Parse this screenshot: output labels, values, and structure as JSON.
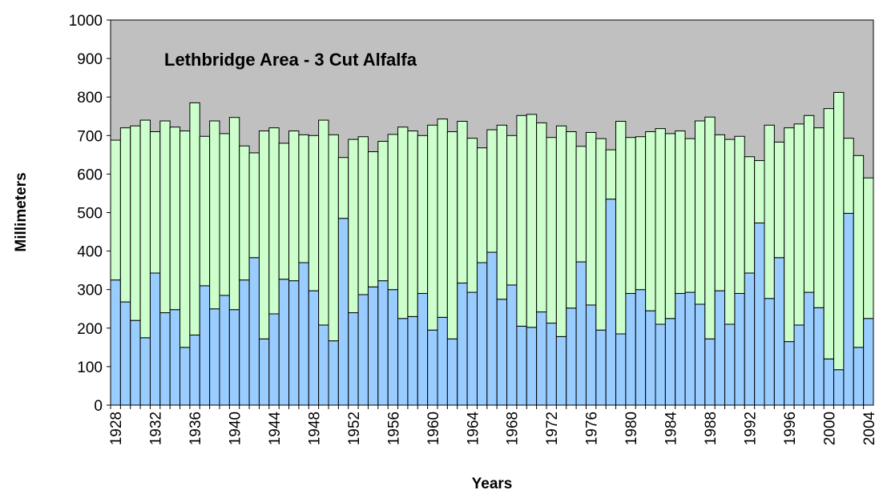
{
  "chart_data": {
    "type": "stacked-bar",
    "title": "Lethbridge Area - 3 Cut Alfalfa",
    "x_label": "Years",
    "y_label": "Millimeters",
    "categories": [
      "1928",
      null,
      null,
      null,
      "1932",
      null,
      null,
      null,
      "1936",
      null,
      null,
      null,
      "1940",
      null,
      null,
      null,
      "1944",
      null,
      null,
      null,
      "1948",
      null,
      null,
      null,
      "1952",
      null,
      null,
      null,
      "1956",
      null,
      null,
      null,
      "1960",
      null,
      null,
      null,
      "1964",
      null,
      null,
      null,
      "1968",
      null,
      null,
      null,
      "1972",
      null,
      null,
      null,
      "1976",
      null,
      null,
      null,
      "1980",
      null,
      null,
      null,
      "1984",
      null,
      null,
      null,
      "1988",
      null,
      null,
      null,
      "1992",
      null,
      null,
      null,
      "1996",
      null,
      null,
      null,
      "2000",
      null,
      null,
      null,
      "2004"
    ],
    "series": [
      {
        "color": "#99ccff",
        "values": [
          325,
          268,
          220,
          175,
          343,
          240,
          248,
          150,
          182,
          310,
          250,
          285,
          248,
          325,
          383,
          172,
          237,
          327,
          323,
          370,
          297,
          208,
          167,
          485,
          240,
          287,
          307,
          323,
          300,
          225,
          230,
          290,
          195,
          228,
          172,
          317,
          293,
          370,
          397,
          275,
          312,
          205,
          202,
          242,
          213,
          178,
          252,
          372,
          260,
          195,
          535,
          185,
          290,
          300,
          245,
          210,
          225,
          290,
          293,
          262,
          172,
          297,
          210,
          290,
          343,
          473,
          277,
          383,
          165,
          208,
          293,
          253,
          120,
          92,
          498,
          150,
          225
        ]
      },
      {
        "color": "#ccffcc",
        "values": [
          363,
          452,
          505,
          565,
          367,
          498,
          474,
          562,
          603,
          388,
          488,
          420,
          499,
          348,
          272,
          540,
          483,
          353,
          389,
          332,
          403,
          532,
          535,
          158,
          450,
          410,
          351,
          362,
          403,
          497,
          482,
          410,
          532,
          515,
          538,
          420,
          400,
          298,
          318,
          452,
          388,
          547,
          553,
          491,
          482,
          547,
          458,
          300,
          448,
          497,
          128,
          552,
          405,
          397,
          465,
          508,
          480,
          422,
          399,
          476,
          576,
          405,
          480,
          408,
          302,
          162,
          450,
          300,
          555,
          522,
          459,
          467,
          650,
          720,
          195,
          498,
          365
        ]
      }
    ],
    "ylim": [
      0,
      1000
    ],
    "yticks": [
      0,
      100,
      200,
      300,
      400,
      500,
      600,
      700,
      800,
      900,
      1000
    ],
    "grid": false,
    "plot_background": "#c0c0c0"
  }
}
